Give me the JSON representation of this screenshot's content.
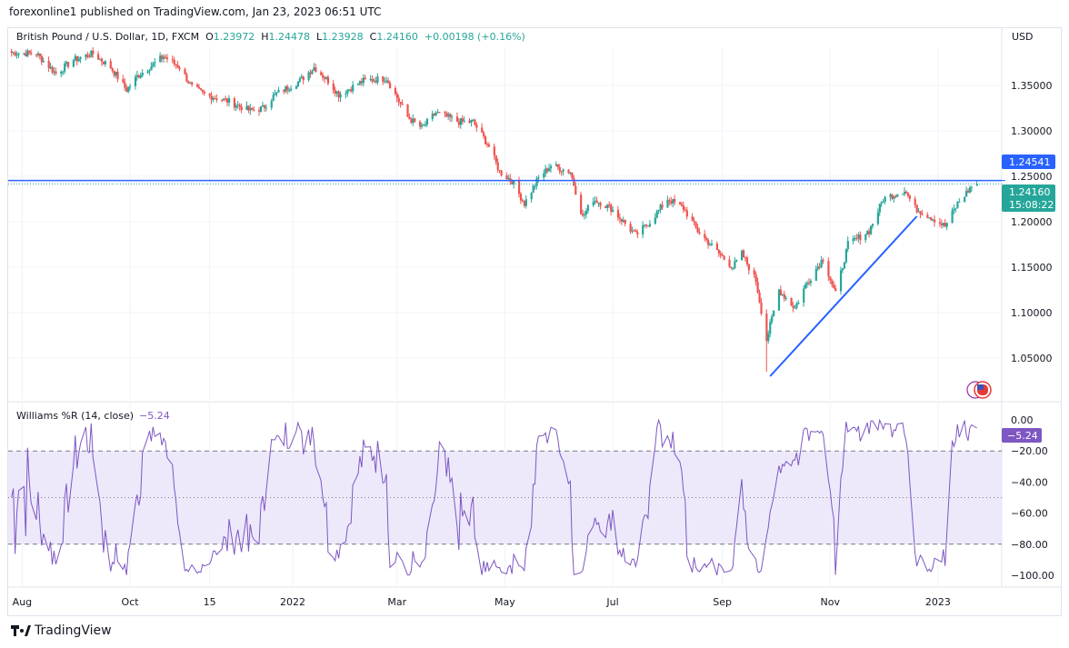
{
  "header": {
    "published": "forexonline1 published on TradingView.com, Jan 23, 2023 06:51 UTC"
  },
  "legend": {
    "symbol": "British Pound / U.S. Dollar, 1D, FXCM",
    "o_label": "O",
    "o": "1.23972",
    "h_label": "H",
    "h": "1.24478",
    "l_label": "L",
    "l": "1.23928",
    "c_label": "C",
    "c": "1.24160",
    "change": "+0.00198 (+0.16%)"
  },
  "currency": "USD",
  "indicator": {
    "name": "Williams %R (14, close)",
    "value": "−5.24",
    "badge": "−5.24"
  },
  "price_badges": {
    "level": "1.24541",
    "last": "1.24160",
    "countdown": "15:08:22"
  },
  "footer": {
    "brand": "TradingView"
  },
  "colors": {
    "up": "#26a69a",
    "down": "#ef5350",
    "level_line": "#2962ff",
    "trend_line": "#2962ff",
    "wr_line": "#7e57c2",
    "wr_band": "#ede9fb"
  },
  "icons": {
    "flag": "gbp-usd-flag-icon",
    "logo": "tradingview-logo-icon"
  },
  "chart_data": {
    "type": "candlestick",
    "interval": "1D",
    "price_axis": {
      "ticks": [
        "1.35000",
        "1.30000",
        "1.25000",
        "1.20000",
        "1.15000",
        "1.10000",
        "1.05000"
      ],
      "tick_values": [
        1.35,
        1.3,
        1.25,
        1.2,
        1.15,
        1.1,
        1.05
      ],
      "ylim": [
        1.015,
        1.39
      ]
    },
    "time_axis": {
      "labels": [
        "Aug",
        "Oct",
        "15",
        "2022",
        "Mar",
        "May",
        "Jul",
        "Sep",
        "Nov",
        "2023"
      ],
      "label_dates": [
        "2021-08-01",
        "2021-10-01",
        "2021-11-15",
        "2022-01-01",
        "2022-03-01",
        "2022-05-01",
        "2022-07-01",
        "2022-09-01",
        "2022-11-01",
        "2023-01-01"
      ]
    },
    "close_keypoints": [
      [
        "2021-07-26",
        1.386
      ],
      [
        "2021-08-09",
        1.385
      ],
      [
        "2021-08-20",
        1.363
      ],
      [
        "2021-08-30",
        1.378
      ],
      [
        "2021-09-10",
        1.385
      ],
      [
        "2021-09-20",
        1.37
      ],
      [
        "2021-09-29",
        1.345
      ],
      [
        "2021-10-05",
        1.36
      ],
      [
        "2021-10-20",
        1.382
      ],
      [
        "2021-10-29",
        1.37
      ],
      [
        "2021-11-05",
        1.348
      ],
      [
        "2021-11-12",
        1.34
      ],
      [
        "2021-11-25",
        1.333
      ],
      [
        "2021-12-08",
        1.322
      ],
      [
        "2021-12-15",
        1.325
      ],
      [
        "2021-12-22",
        1.34
      ],
      [
        "2022-01-05",
        1.355
      ],
      [
        "2022-01-13",
        1.37
      ],
      [
        "2022-01-21",
        1.355
      ],
      [
        "2022-01-27",
        1.34
      ],
      [
        "2022-02-10",
        1.355
      ],
      [
        "2022-02-23",
        1.358
      ],
      [
        "2022-03-07",
        1.315
      ],
      [
        "2022-03-15",
        1.303
      ],
      [
        "2022-03-23",
        1.32
      ],
      [
        "2022-04-05",
        1.31
      ],
      [
        "2022-04-13",
        1.31
      ],
      [
        "2022-04-22",
        1.283
      ],
      [
        "2022-04-28",
        1.255
      ],
      [
        "2022-05-05",
        1.245
      ],
      [
        "2022-05-12",
        1.22
      ],
      [
        "2022-05-20",
        1.248
      ],
      [
        "2022-05-27",
        1.262
      ],
      [
        "2022-06-07",
        1.255
      ],
      [
        "2022-06-14",
        1.205
      ],
      [
        "2022-06-20",
        1.225
      ],
      [
        "2022-06-30",
        1.215
      ],
      [
        "2022-07-14",
        1.185
      ],
      [
        "2022-07-22",
        1.2
      ],
      [
        "2022-08-01",
        1.225
      ],
      [
        "2022-08-10",
        1.215
      ],
      [
        "2022-08-18",
        1.19
      ],
      [
        "2022-08-30",
        1.165
      ],
      [
        "2022-09-07",
        1.15
      ],
      [
        "2022-09-12",
        1.165
      ],
      [
        "2022-09-20",
        1.135
      ],
      [
        "2022-09-26",
        1.07
      ],
      [
        "2022-10-03",
        1.125
      ],
      [
        "2022-10-12",
        1.105
      ],
      [
        "2022-10-18",
        1.13
      ],
      [
        "2022-10-28",
        1.16
      ],
      [
        "2022-11-04",
        1.12
      ],
      [
        "2022-11-11",
        1.175
      ],
      [
        "2022-11-23",
        1.19
      ],
      [
        "2022-12-01",
        1.225
      ],
      [
        "2022-12-13",
        1.235
      ],
      [
        "2022-12-19",
        1.215
      ],
      [
        "2022-12-28",
        1.205
      ],
      [
        "2023-01-05",
        1.195
      ],
      [
        "2023-01-12",
        1.22
      ],
      [
        "2023-01-20",
        1.239
      ],
      [
        "2023-01-23",
        1.2416
      ]
    ],
    "horizontal_level": 1.24541,
    "last_price": 1.2416,
    "trend_line": [
      [
        "2022-09-28",
        1.03
      ],
      [
        "2022-12-20",
        1.206
      ]
    ],
    "williams_r": {
      "period": 14,
      "ticks": [
        "0.00",
        "−20.00",
        "−40.00",
        "−60.00",
        "−80.00",
        "−100.00"
      ],
      "tick_values": [
        0,
        -20,
        -40,
        -60,
        -80,
        -100
      ],
      "overbought": -20,
      "middle": -50,
      "oversold": -80,
      "last": -5.24
    }
  }
}
